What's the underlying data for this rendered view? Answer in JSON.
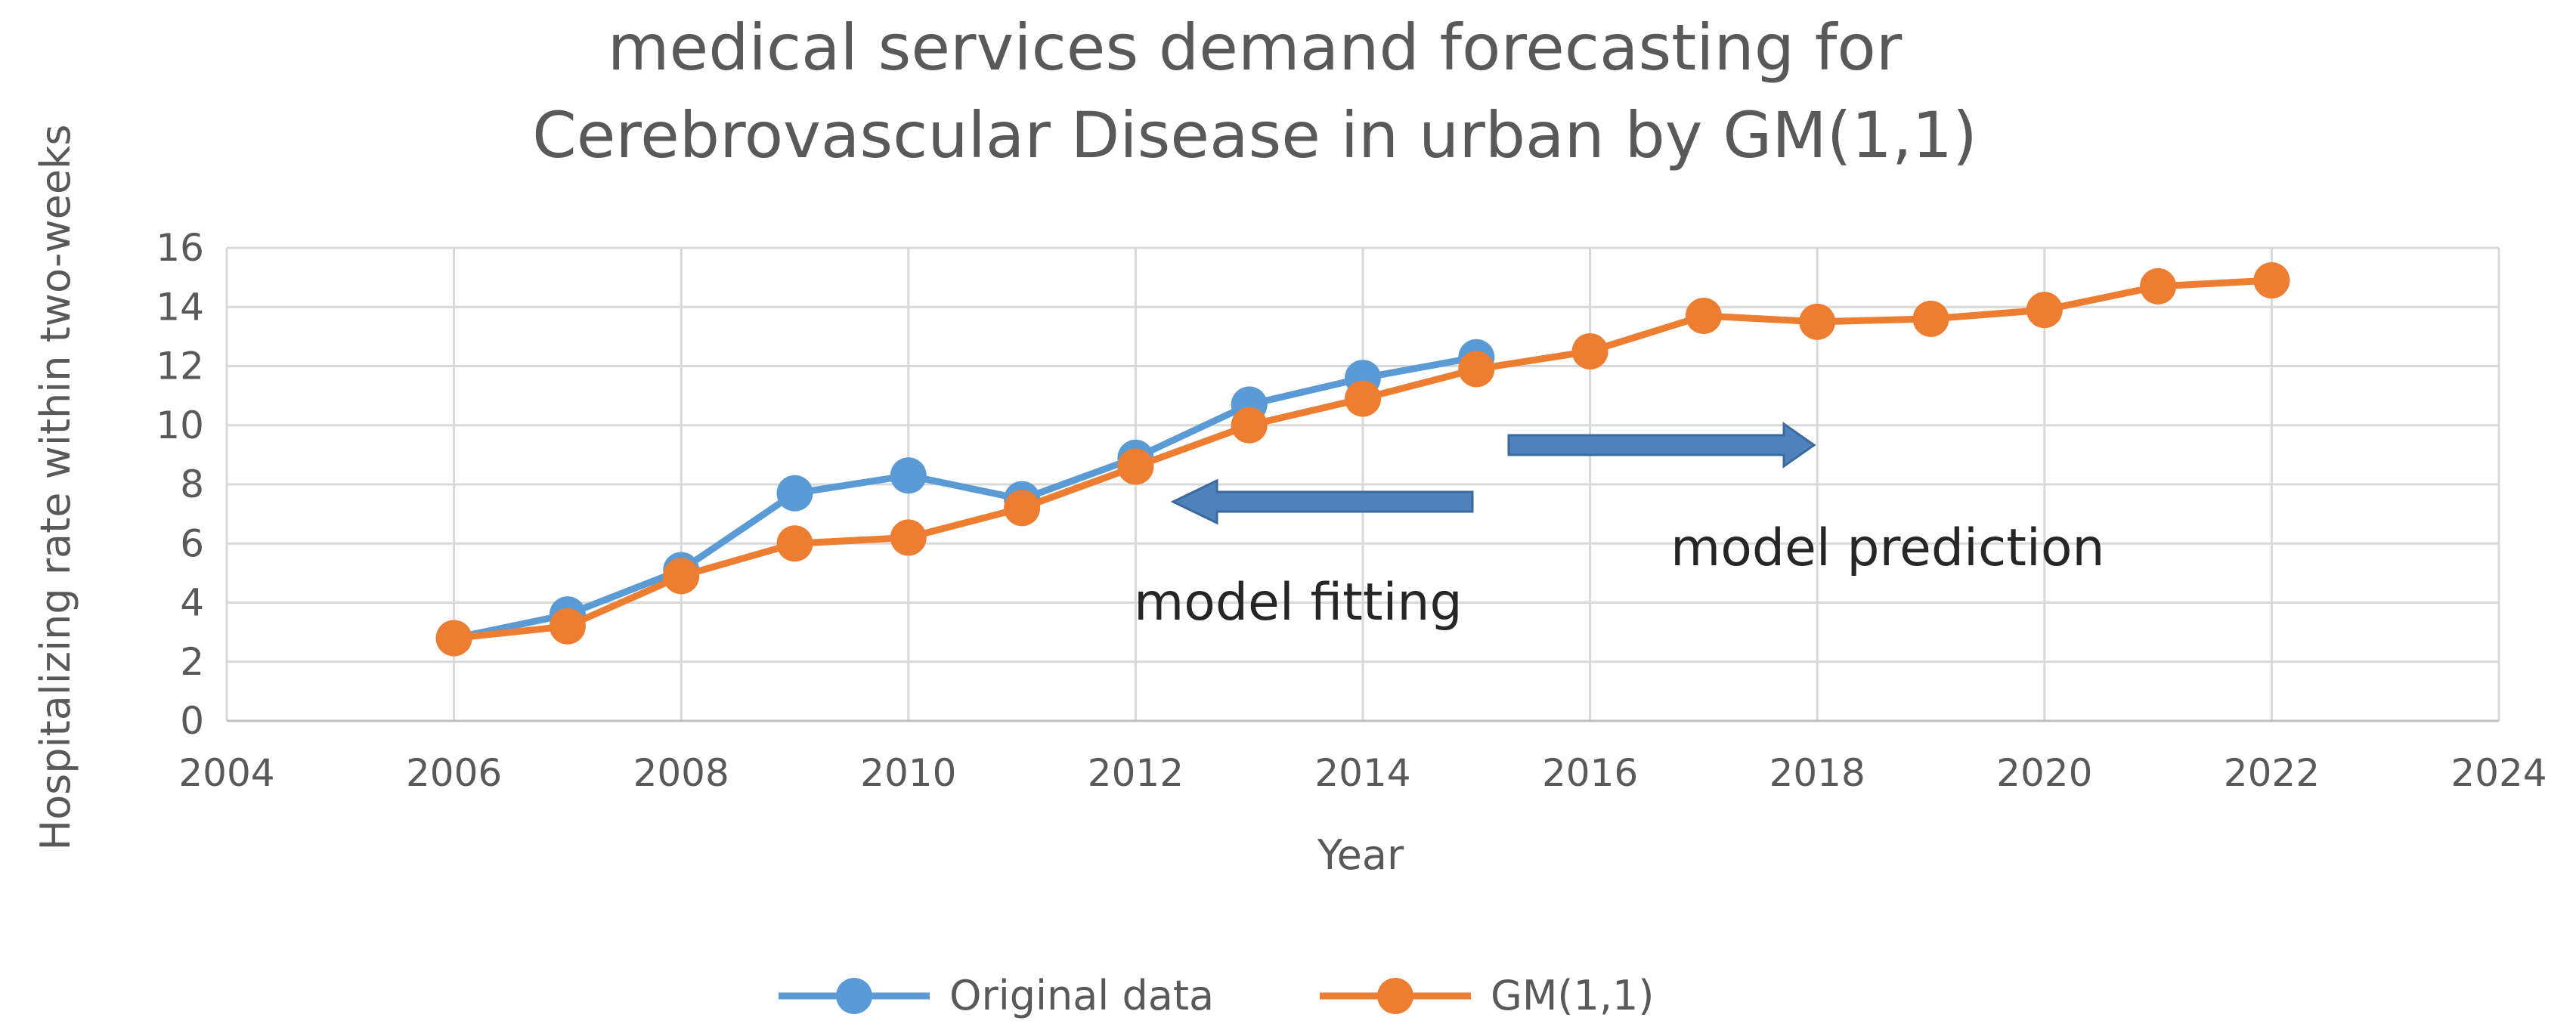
{
  "chart_data": {
    "type": "line",
    "title_lines": [
      "medical services demand forecasting for",
      "Cerebrovascular Disease in urban by GM(1,1)"
    ],
    "xlabel": "Year",
    "ylabel": "Hospitalizing rate within two-weeks",
    "xlim": [
      2004,
      2024
    ],
    "ylim": [
      0,
      16
    ],
    "x_ticks": [
      2004,
      2006,
      2008,
      2010,
      2012,
      2014,
      2016,
      2018,
      2020,
      2022,
      2024
    ],
    "y_ticks": [
      0,
      2,
      4,
      6,
      8,
      10,
      12,
      14,
      16
    ],
    "grid": true,
    "legend_position": "bottom",
    "series": [
      {
        "name": "Original data",
        "color": "#5B9BD5",
        "x": [
          2006,
          2007,
          2008,
          2009,
          2010,
          2011,
          2012,
          2013,
          2014,
          2015
        ],
        "values": [
          2.8,
          3.6,
          5.1,
          7.7,
          8.3,
          7.5,
          8.9,
          10.7,
          11.6,
          12.3
        ]
      },
      {
        "name": "GM(1,1)",
        "color": "#ED7D31",
        "x": [
          2006,
          2007,
          2008,
          2009,
          2010,
          2011,
          2012,
          2013,
          2014,
          2015,
          2016,
          2017,
          2018,
          2019,
          2020,
          2021,
          2022
        ],
        "values": [
          2.8,
          3.2,
          4.9,
          6.0,
          6.2,
          7.2,
          8.6,
          10.0,
          10.9,
          11.9,
          12.5,
          13.7,
          13.5,
          13.6,
          13.9,
          14.7,
          14.9
        ]
      }
    ],
    "annotations": [
      {
        "text": "model fitting"
      },
      {
        "text": "model prediction"
      }
    ],
    "arrow_color": "#4F81BD"
  }
}
